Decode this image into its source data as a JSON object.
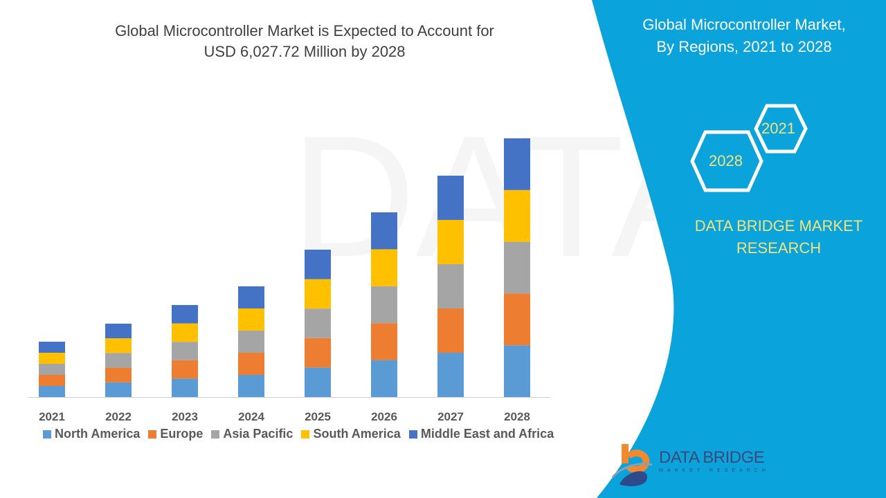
{
  "header": {
    "title_line1": "Global Microcontroller Market is Expected to Account for",
    "title_line2": "USD 6,027.72 Million by 2028"
  },
  "side_panel": {
    "title_line1": "Global Microcontroller Market,",
    "title_line2": "By Regions, 2021 to 2028",
    "hex_start_year": "2021",
    "hex_end_year": "2028",
    "brand_line1": "DATA BRIDGE MARKET",
    "brand_line2": "RESEARCH",
    "panel_color": "#0ba3dc",
    "brand_color": "#f2e27a"
  },
  "logo": {
    "name": "DATA BRIDGE",
    "tagline": "MARKET RESEARCH"
  },
  "chart_data": {
    "type": "bar",
    "stacked": true,
    "title": "Global Microcontroller Market is Expected to Account for USD 6,027.72 Million by 2028",
    "xlabel": "",
    "ylabel": "",
    "y_axis_shown": false,
    "grid": false,
    "legend_position": "bottom",
    "categories": [
      "2021",
      "2022",
      "2023",
      "2024",
      "2025",
      "2026",
      "2027",
      "2028"
    ],
    "series": [
      {
        "name": "North America",
        "color": "#5b9bd5",
        "values": [
          258,
          342,
          429,
          516,
          687,
          861,
          1032,
          1206
        ]
      },
      {
        "name": "Europe",
        "color": "#ed7d31",
        "values": [
          258,
          342,
          429,
          516,
          687,
          861,
          1032,
          1206
        ]
      },
      {
        "name": "Asia Pacific",
        "color": "#a5a5a5",
        "values": [
          258,
          342,
          429,
          516,
          687,
          861,
          1032,
          1206
        ]
      },
      {
        "name": "South America",
        "color": "#ffc000",
        "values": [
          258,
          342,
          429,
          516,
          687,
          861,
          1032,
          1206
        ]
      },
      {
        "name": "Middle East and Africa",
        "color": "#4472c4",
        "values": [
          258,
          342,
          429,
          516,
          687,
          861,
          1032,
          1206
        ]
      }
    ]
  }
}
